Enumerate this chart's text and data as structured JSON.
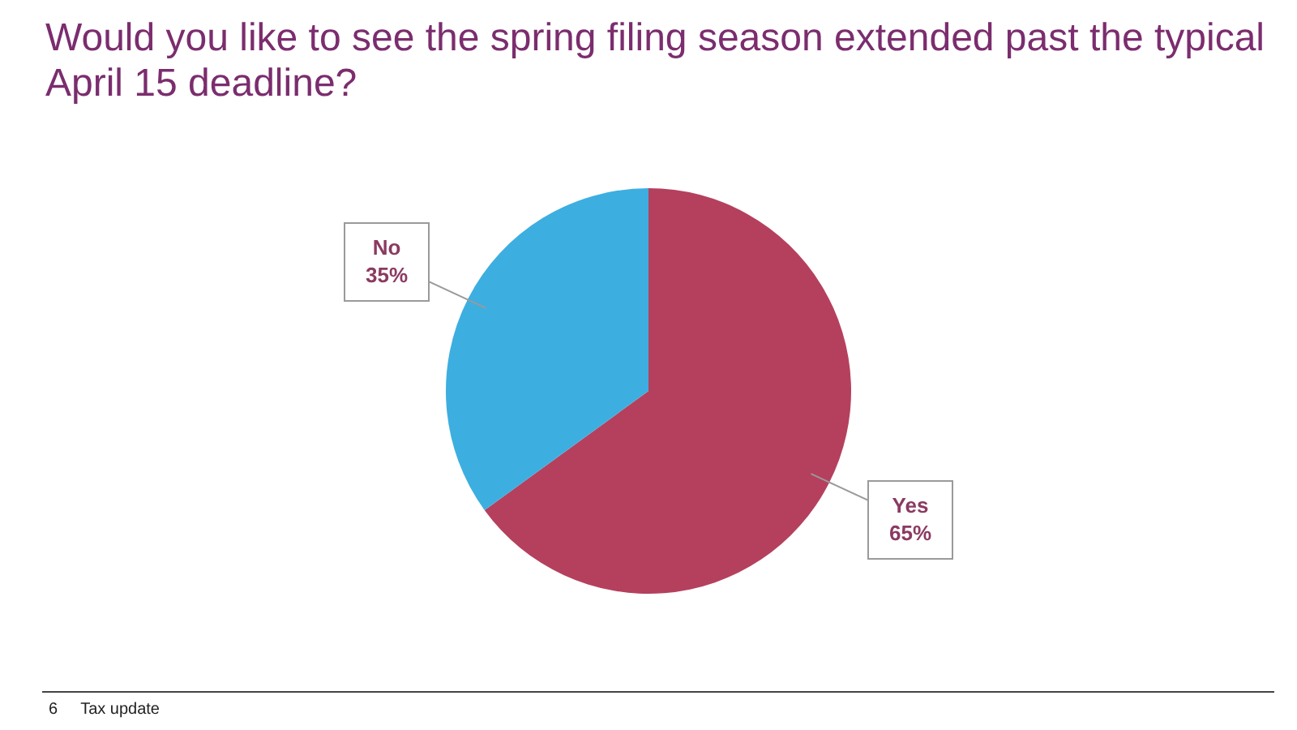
{
  "chart_data": {
    "type": "pie",
    "title": "Would you like to see the spring filing season extended past the typical April 15 deadline?",
    "categories": [
      "Yes",
      "No"
    ],
    "values": [
      65,
      35
    ],
    "colors": [
      "#b5405e",
      "#3daee0"
    ],
    "value_labels": [
      "65%",
      "35%"
    ],
    "legend": false,
    "annotations": [
      "6",
      "Tax update"
    ]
  }
}
